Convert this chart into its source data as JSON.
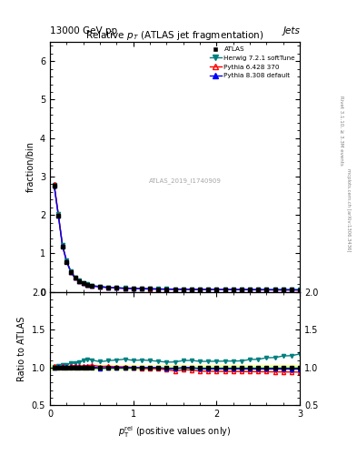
{
  "title": "Relative $p_T$ (ATLAS jet fragmentation)",
  "top_left_label": "13000 GeV pp",
  "top_right_label": "Jets",
  "watermark": "ATLAS_2019_I1740909",
  "ylabel_main": "fraction/bin",
  "ylabel_ratio": "Ratio to ATLAS",
  "xlabel": "$p_{\\mathrm{T}}^{\\mathrm{rel}}$ (positive values only)",
  "xlim": [
    0,
    3
  ],
  "ylim_main": [
    0,
    6.5
  ],
  "ylim_ratio": [
    0.5,
    2.0
  ],
  "x_data": [
    0.05,
    0.1,
    0.15,
    0.2,
    0.25,
    0.3,
    0.35,
    0.4,
    0.45,
    0.5,
    0.6,
    0.7,
    0.8,
    0.9,
    1.0,
    1.1,
    1.2,
    1.3,
    1.4,
    1.5,
    1.6,
    1.7,
    1.8,
    1.9,
    2.0,
    2.1,
    2.2,
    2.3,
    2.4,
    2.5,
    2.6,
    2.7,
    2.8,
    2.9,
    3.0
  ],
  "atlas_data": [
    2.75,
    1.98,
    1.18,
    0.78,
    0.51,
    0.36,
    0.28,
    0.22,
    0.18,
    0.15,
    0.13,
    0.11,
    0.1,
    0.09,
    0.085,
    0.08,
    0.075,
    0.072,
    0.07,
    0.068,
    0.065,
    0.063,
    0.062,
    0.061,
    0.06,
    0.059,
    0.058,
    0.057,
    0.056,
    0.055,
    0.054,
    0.053,
    0.052,
    0.051,
    0.05
  ],
  "atlas_err": [
    0.05,
    0.03,
    0.02,
    0.015,
    0.01,
    0.008,
    0.006,
    0.005,
    0.004,
    0.003,
    0.003,
    0.003,
    0.003,
    0.003,
    0.003,
    0.003,
    0.003,
    0.003,
    0.003,
    0.003,
    0.003,
    0.003,
    0.003,
    0.003,
    0.003,
    0.003,
    0.003,
    0.003,
    0.003,
    0.003,
    0.003,
    0.003,
    0.003,
    0.003,
    0.003
  ],
  "herwig_data": [
    2.78,
    2.02,
    1.22,
    0.81,
    0.54,
    0.38,
    0.3,
    0.24,
    0.2,
    0.165,
    0.14,
    0.12,
    0.11,
    0.1,
    0.093,
    0.088,
    0.082,
    0.078,
    0.075,
    0.073,
    0.071,
    0.069,
    0.067,
    0.066,
    0.065,
    0.064,
    0.063,
    0.062,
    0.062,
    0.061,
    0.061,
    0.06,
    0.06,
    0.059,
    0.059
  ],
  "pythia6_data": [
    2.8,
    2.01,
    1.2,
    0.79,
    0.52,
    0.37,
    0.285,
    0.225,
    0.185,
    0.155,
    0.132,
    0.112,
    0.101,
    0.091,
    0.085,
    0.079,
    0.074,
    0.071,
    0.068,
    0.065,
    0.063,
    0.061,
    0.059,
    0.058,
    0.057,
    0.056,
    0.055,
    0.054,
    0.053,
    0.052,
    0.051,
    0.05,
    0.049,
    0.048,
    0.047
  ],
  "pythia8_data": [
    2.76,
    1.99,
    1.19,
    0.785,
    0.515,
    0.362,
    0.282,
    0.222,
    0.182,
    0.152,
    0.129,
    0.11,
    0.1,
    0.09,
    0.085,
    0.08,
    0.075,
    0.072,
    0.069,
    0.067,
    0.065,
    0.063,
    0.061,
    0.06,
    0.059,
    0.058,
    0.057,
    0.056,
    0.055,
    0.054,
    0.053,
    0.052,
    0.051,
    0.05,
    0.049
  ],
  "herwig_ratio": [
    1.011,
    1.02,
    1.034,
    1.038,
    1.059,
    1.056,
    1.071,
    1.091,
    1.111,
    1.1,
    1.077,
    1.091,
    1.1,
    1.111,
    1.094,
    1.1,
    1.093,
    1.083,
    1.071,
    1.074,
    1.092,
    1.095,
    1.081,
    1.082,
    1.083,
    1.085,
    1.086,
    1.088,
    1.107,
    1.109,
    1.13,
    1.132,
    1.154,
    1.157,
    1.18
  ],
  "pythia6_ratio": [
    1.018,
    1.015,
    1.017,
    1.013,
    1.02,
    1.028,
    1.018,
    1.023,
    1.028,
    1.033,
    1.015,
    1.018,
    1.01,
    1.011,
    1.0,
    0.988,
    0.987,
    0.986,
    0.971,
    0.956,
    0.969,
    0.968,
    0.952,
    0.951,
    0.95,
    0.949,
    0.948,
    0.947,
    0.946,
    0.945,
    0.944,
    0.943,
    0.942,
    0.941,
    0.94
  ],
  "pythia8_ratio": [
    1.004,
    1.005,
    1.008,
    1.006,
    1.01,
    1.006,
    1.007,
    1.009,
    1.011,
    1.013,
    0.992,
    1.0,
    1.0,
    1.0,
    1.0,
    1.0,
    1.0,
    1.0,
    0.986,
    0.985,
    1.0,
    1.0,
    0.984,
    0.984,
    0.983,
    0.983,
    0.983,
    0.982,
    0.982,
    0.982,
    0.981,
    0.981,
    0.981,
    0.98,
    0.98
  ],
  "color_atlas": "#000000",
  "color_herwig": "#008080",
  "color_pythia6": "#ff0000",
  "color_pythia8": "#0000ff",
  "color_band_yellow": "#ffff99",
  "color_band_green": "#99ff99"
}
